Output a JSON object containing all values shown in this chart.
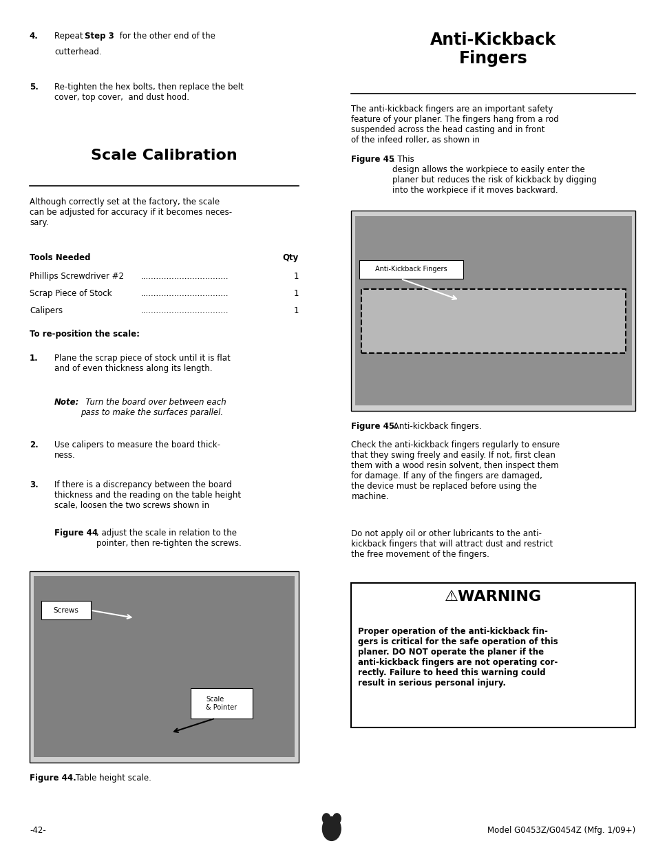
{
  "bg_color": "#ffffff",
  "text_color": "#000000",
  "page_width": 9.54,
  "page_height": 12.35,
  "left_section_title": "Scale Calibration",
  "left_intro": "Although correctly set at the factory, the scale\ncan be adjusted for accuracy if it becomes neces-\nsary.",
  "tools_header": "Tools Needed",
  "tools_qty_header": "Qty",
  "tools": [
    {
      "name": "Phillips Screwdriver #2",
      "qty": "1"
    },
    {
      "name": "Scrap Piece of Stock",
      "qty": "1"
    },
    {
      "name": "Calipers",
      "qty": "1"
    }
  ],
  "reposition_header": "To re-position the scale:",
  "figure44_caption_bold": "Figure 44.",
  "figure44_caption_rest": " Table height scale.",
  "figure45_caption_bold": "Figure 45.",
  "figure45_caption_rest": " Anti-kickback fingers.",
  "right_section_title": "Anti-Kickback\nFingers",
  "warning_title": "⚠WARNING",
  "warning_text": "Proper operation of the anti-kickback fin-\ngers is critical for the safe operation of this\nplaner. DO NOT operate the planer if the\nanti-kickback fingers are not operating cor-\nrectly. Failure to heed this warning could\nresult in serious personal injury.",
  "page_number": "-42-",
  "model_text": "Model G0453Z/G0454Z (Mfg. 1/09+)"
}
